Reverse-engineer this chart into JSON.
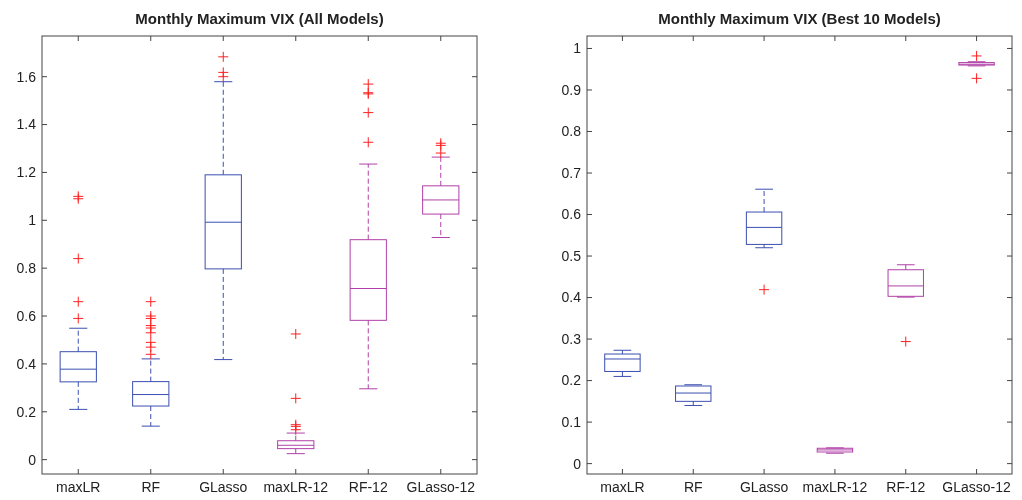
{
  "chart_data": [
    {
      "type": "box",
      "title": "Monthly Maximum VIX (All Models)",
      "categories": [
        "maxLR",
        "RF",
        "GLasso",
        "maxLR-12",
        "RF-12",
        "GLasso-12"
      ],
      "colors": [
        "#3b4fb0",
        "#3b4fb0",
        "#3b4fb0",
        "#b040a8",
        "#b040a8",
        "#b040a8"
      ],
      "ylim": [
        -0.06,
        1.77
      ],
      "yticks": [
        0,
        0.2,
        0.4,
        0.6,
        0.8,
        1,
        1.2,
        1.4,
        1.6
      ],
      "grid": false,
      "boxes": [
        {
          "low": 0.21,
          "q1": 0.325,
          "median": 0.378,
          "q3": 0.451,
          "high": 0.549,
          "outliers": [
            0.59,
            0.66,
            0.84,
            1.09,
            1.1
          ]
        },
        {
          "low": 0.14,
          "q1": 0.224,
          "median": 0.272,
          "q3": 0.326,
          "high": 0.421,
          "outliers": [
            0.44,
            0.47,
            0.49,
            0.53,
            0.55,
            0.56,
            0.59,
            0.6,
            0.66
          ]
        },
        {
          "low": 0.418,
          "q1": 0.797,
          "median": 0.992,
          "q3": 1.19,
          "high": 1.579,
          "outliers": [
            1.6,
            1.618,
            1.683
          ]
        },
        {
          "low": 0.025,
          "q1": 0.046,
          "median": 0.06,
          "q3": 0.079,
          "high": 0.111,
          "outliers": [
            0.125,
            0.139,
            0.146,
            0.256,
            0.525
          ]
        },
        {
          "low": 0.296,
          "q1": 0.582,
          "median": 0.715,
          "q3": 0.919,
          "high": 1.235,
          "outliers": [
            1.326,
            1.45,
            1.528,
            1.533,
            1.569
          ]
        },
        {
          "low": 0.928,
          "q1": 1.026,
          "median": 1.085,
          "q3": 1.144,
          "high": 1.264,
          "outliers": [
            1.281,
            1.313,
            1.322
          ]
        }
      ]
    },
    {
      "type": "box",
      "title": "Monthly Maximum VIX (Best 10 Models)",
      "categories": [
        "maxLR",
        "RF",
        "GLasso",
        "maxLR-12",
        "RF-12",
        "GLasso-12"
      ],
      "colors": [
        "#3b4fb0",
        "#3b4fb0",
        "#3b4fb0",
        "#b040a8",
        "#b040a8",
        "#b040a8"
      ],
      "ylim": [
        -0.025,
        1.03
      ],
      "yticks": [
        0,
        0.1,
        0.2,
        0.3,
        0.4,
        0.5,
        0.6,
        0.7,
        0.8,
        0.9,
        1
      ],
      "grid": false,
      "boxes": [
        {
          "low": 0.21,
          "q1": 0.222,
          "median": 0.252,
          "q3": 0.264,
          "high": 0.273
        },
        {
          "low": 0.14,
          "q1": 0.15,
          "median": 0.17,
          "q3": 0.187,
          "high": 0.19
        },
        {
          "low": 0.52,
          "q1": 0.528,
          "median": 0.569,
          "q3": 0.606,
          "high": 0.661,
          "outliers": [
            0.419
          ]
        },
        {
          "low": 0.025,
          "q1": 0.028,
          "median": 0.033,
          "q3": 0.037,
          "high": 0.038
        },
        {
          "low": 0.401,
          "q1": 0.403,
          "median": 0.428,
          "q3": 0.467,
          "high": 0.479,
          "outliers": [
            0.294
          ]
        },
        {
          "low": 0.958,
          "q1": 0.96,
          "median": 0.962,
          "q3": 0.966,
          "high": 0.968,
          "outliers": [
            0.928,
            0.982
          ]
        }
      ]
    }
  ]
}
